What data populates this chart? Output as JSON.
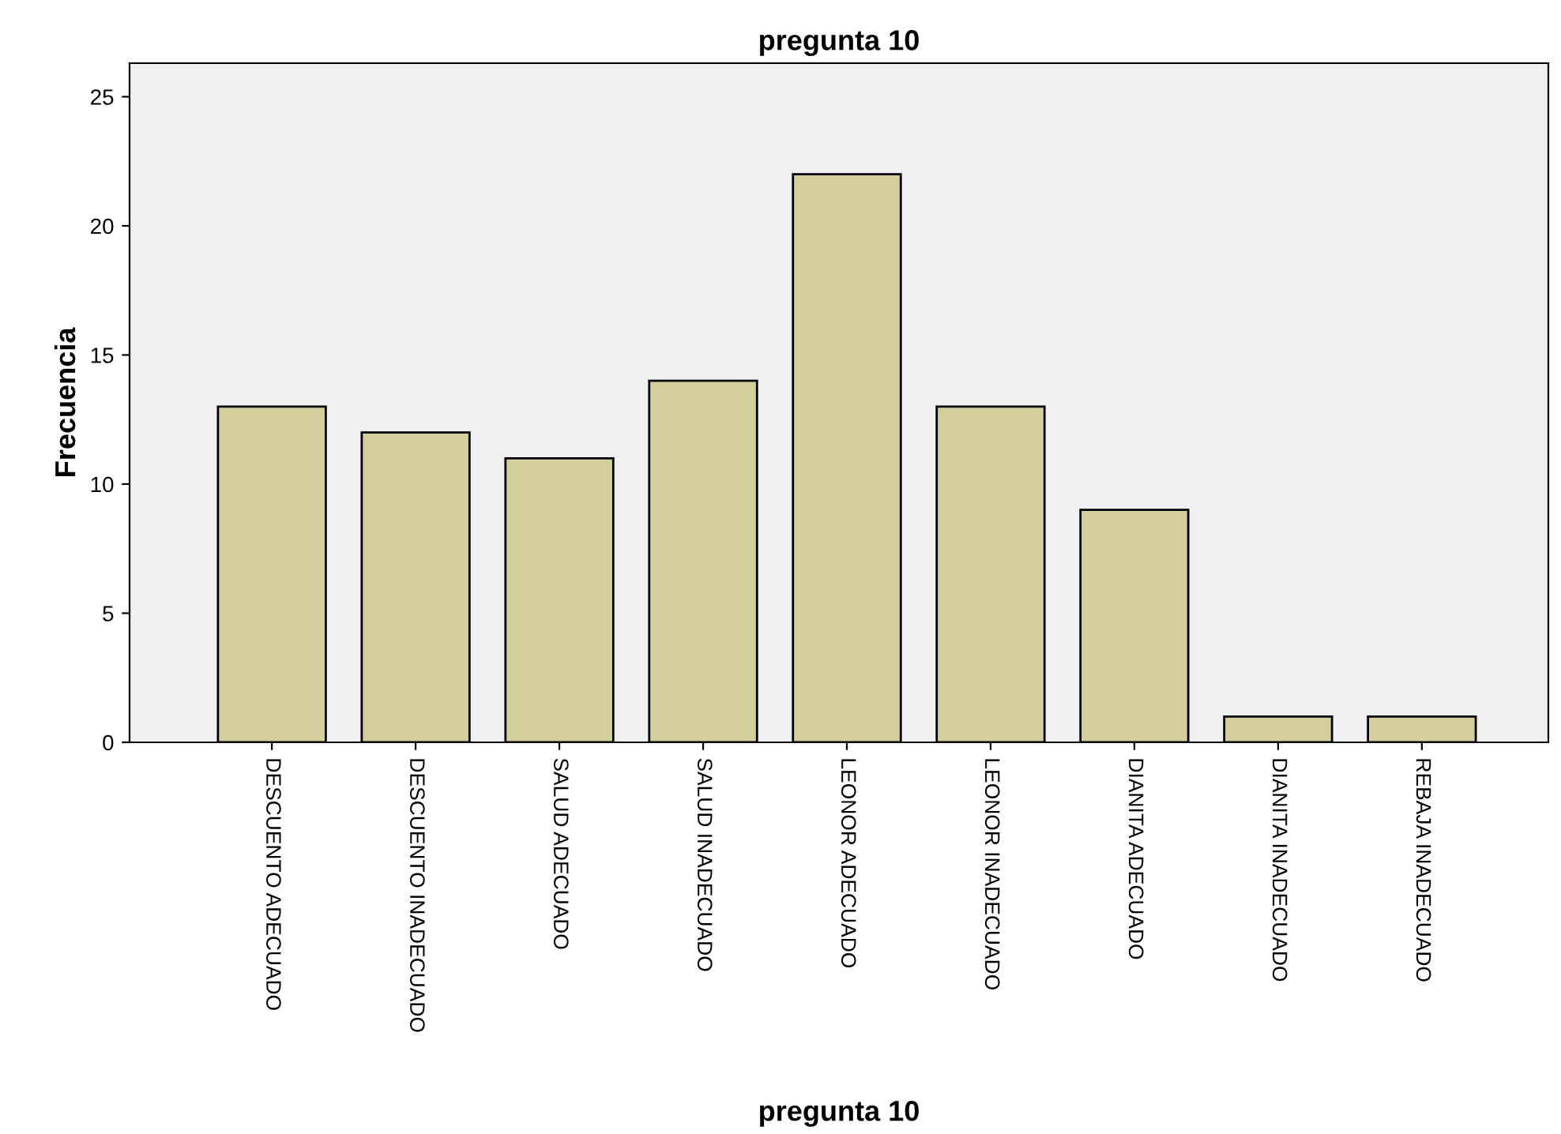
{
  "chart_data": {
    "type": "bar",
    "title": "pregunta 10",
    "xlabel": "pregunta 10",
    "ylabel": "Frecuencia",
    "categories": [
      "DESCUENTO ADECUADO",
      "DESCUENTO INADECUADO",
      "SALUD ADECUADO",
      "SALUD INADECUADO",
      "LEONOR ADECUADO",
      "LEONOR INADECUADO",
      "DIANITA ADECUADO",
      "DIANITA INADECUADO",
      "REBAJA INADECUADO"
    ],
    "values": [
      13,
      12,
      11,
      14,
      22,
      13,
      9,
      1,
      1
    ],
    "color": "#d3ce9b",
    "ylim": [
      0,
      26.3
    ],
    "yticks": [
      0,
      5,
      10,
      15,
      20,
      25
    ],
    "grid": false
  }
}
